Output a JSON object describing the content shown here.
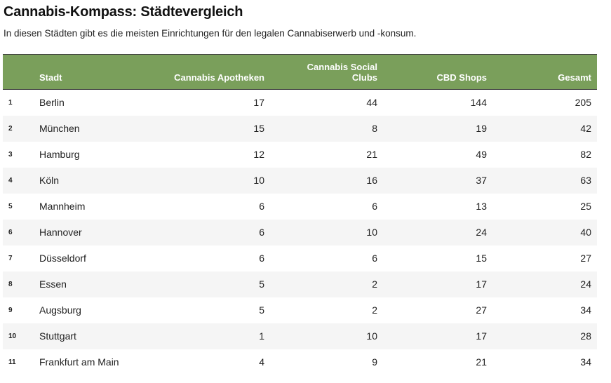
{
  "title": "Cannabis-Kompass: Städtevergleich",
  "subtitle": "In diesen Städten gibt es die meisten Einrichtungen für den legalen Cannabiserwerb und -konsum.",
  "colors": {
    "header_bg": "#7a9f5b",
    "header_text": "#ffffff",
    "stripe": "#f5f5f5"
  },
  "chart_data": {
    "type": "table",
    "columns": [
      "",
      "Stadt",
      "Cannabis Apotheken",
      "Cannabis Social Clubs",
      "CBD Shops",
      "Gesamt"
    ],
    "rows": [
      [
        "1",
        "Berlin",
        "17",
        "44",
        "144",
        "205"
      ],
      [
        "2",
        "München",
        "15",
        "8",
        "19",
        "42"
      ],
      [
        "3",
        "Hamburg",
        "12",
        "21",
        "49",
        "82"
      ],
      [
        "4",
        "Köln",
        "10",
        "16",
        "37",
        "63"
      ],
      [
        "5",
        "Mannheim",
        "6",
        "6",
        "13",
        "25"
      ],
      [
        "6",
        "Hannover",
        "6",
        "10",
        "24",
        "40"
      ],
      [
        "7",
        "Düsseldorf",
        "6",
        "6",
        "15",
        "27"
      ],
      [
        "8",
        "Essen",
        "5",
        "2",
        "17",
        "24"
      ],
      [
        "9",
        "Augsburg",
        "5",
        "2",
        "27",
        "34"
      ],
      [
        "10",
        "Stuttgart",
        "1",
        "10",
        "17",
        "28"
      ],
      [
        "11",
        "Frankfurt am Main",
        "4",
        "9",
        "21",
        "34"
      ]
    ]
  }
}
